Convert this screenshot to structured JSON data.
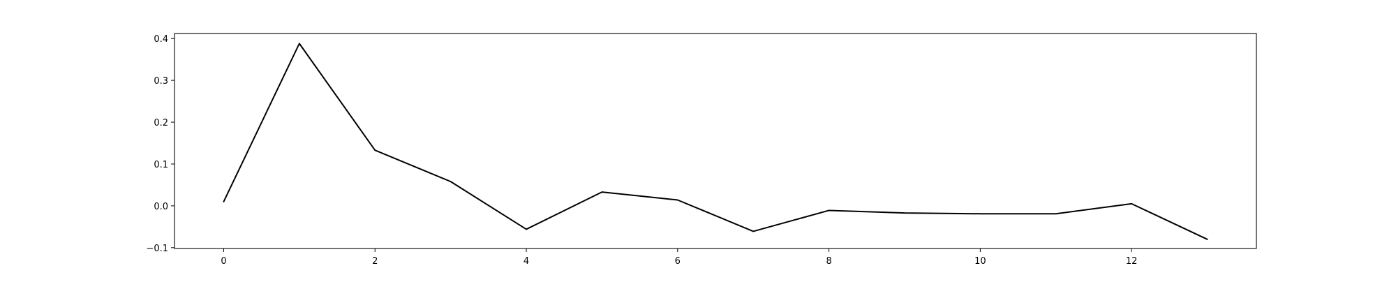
{
  "chart_data": {
    "type": "line",
    "title": "",
    "xlabel": "",
    "ylabel": "",
    "x": [
      0,
      1,
      2,
      3,
      4,
      5,
      6,
      7,
      8,
      9,
      10,
      11,
      12,
      13
    ],
    "series": [
      {
        "values": [
          0.01,
          0.388,
          0.133,
          0.058,
          -0.056,
          0.033,
          0.014,
          -0.061,
          -0.011,
          -0.017,
          -0.019,
          -0.019,
          0.005,
          -0.08
        ],
        "color": "#000000"
      }
    ],
    "xlim": [
      -0.65,
      13.65
    ],
    "ylim": [
      -0.102,
      0.412
    ],
    "xticks": [
      0,
      2,
      4,
      6,
      8,
      10,
      12
    ],
    "yticks": [
      -0.1,
      0.0,
      0.1,
      0.2,
      0.3,
      0.4
    ],
    "xtick_labels": [
      "0",
      "2",
      "4",
      "6",
      "8",
      "10",
      "12"
    ],
    "ytick_labels": [
      "−0.1",
      "0.0",
      "0.1",
      "0.2",
      "0.3",
      "0.4"
    ],
    "grid": false,
    "legend": "none"
  }
}
